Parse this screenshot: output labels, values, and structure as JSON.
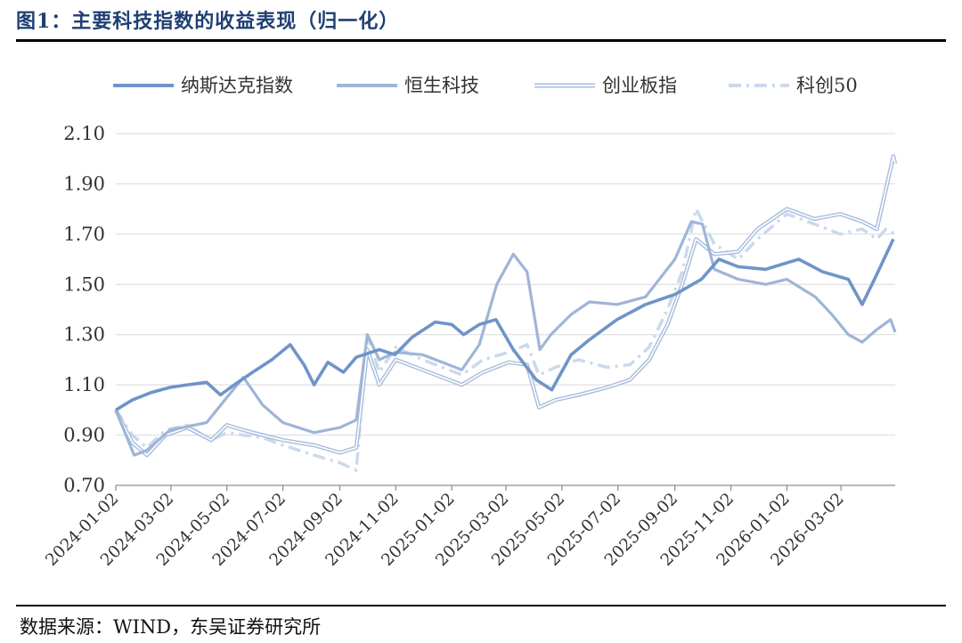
{
  "figure": {
    "title": "图1：主要科技指数的收益表现（归一化）",
    "source": "数据来源：WIND，东吴证券研究所"
  },
  "chart_data": {
    "type": "line",
    "title": "主要科技指数的收益表现（归一化）",
    "xlabel": "",
    "ylabel": "",
    "ylim": [
      0.7,
      2.1
    ],
    "yticks": [
      "0.70",
      "0.90",
      "1.10",
      "1.30",
      "1.50",
      "1.70",
      "1.90",
      "2.10"
    ],
    "xticks": [
      "2024-01-02",
      "2024-03-02",
      "2024-05-02",
      "2024-07-02",
      "2024-09-02",
      "2024-11-02",
      "2025-01-02",
      "2025-03-02",
      "2025-05-02",
      "2025-07-02",
      "2025-09-02",
      "2025-11-02",
      "2026-01-02",
      "2026-03-02"
    ],
    "grid": "horizontal",
    "legend_position": "top",
    "series": [
      {
        "name": "纳斯达克指数",
        "color": "#6f94c8",
        "style": "solid",
        "points": [
          [
            "2024-01-02",
            1.0
          ],
          [
            "2024-01-20",
            1.04
          ],
          [
            "2024-02-10",
            1.07
          ],
          [
            "2024-03-01",
            1.09
          ],
          [
            "2024-03-20",
            1.1
          ],
          [
            "2024-04-10",
            1.11
          ],
          [
            "2024-04-25",
            1.06
          ],
          [
            "2024-05-10",
            1.1
          ],
          [
            "2024-05-30",
            1.15
          ],
          [
            "2024-06-20",
            1.2
          ],
          [
            "2024-07-10",
            1.26
          ],
          [
            "2024-07-25",
            1.18
          ],
          [
            "2024-08-05",
            1.1
          ],
          [
            "2024-08-20",
            1.19
          ],
          [
            "2024-09-06",
            1.15
          ],
          [
            "2024-09-20",
            1.21
          ],
          [
            "2024-10-15",
            1.24
          ],
          [
            "2024-11-01",
            1.22
          ],
          [
            "2024-11-20",
            1.29
          ],
          [
            "2024-12-15",
            1.35
          ],
          [
            "2025-01-02",
            1.34
          ],
          [
            "2025-01-15",
            1.3
          ],
          [
            "2025-02-01",
            1.34
          ],
          [
            "2025-02-19",
            1.36
          ],
          [
            "2025-03-10",
            1.24
          ],
          [
            "2025-04-04",
            1.12
          ],
          [
            "2025-04-21",
            1.08
          ],
          [
            "2025-05-12",
            1.22
          ],
          [
            "2025-06-01",
            1.28
          ],
          [
            "2025-07-01",
            1.36
          ],
          [
            "2025-08-01",
            1.42
          ],
          [
            "2025-09-02",
            1.46
          ],
          [
            "2025-10-01",
            1.52
          ],
          [
            "2025-10-20",
            1.6
          ],
          [
            "2025-11-10",
            1.57
          ],
          [
            "2025-12-10",
            1.56
          ],
          [
            "2026-01-15",
            1.6
          ],
          [
            "2026-02-10",
            1.55
          ],
          [
            "2026-03-10",
            1.52
          ],
          [
            "2026-03-25",
            1.42
          ],
          [
            "2026-04-10",
            1.54
          ],
          [
            "2026-04-28",
            1.68
          ]
        ]
      },
      {
        "name": "恒生科技",
        "color": "#9fb5d8",
        "style": "solid",
        "points": [
          [
            "2024-01-02",
            1.0
          ],
          [
            "2024-01-22",
            0.82
          ],
          [
            "2024-02-05",
            0.84
          ],
          [
            "2024-03-01",
            0.92
          ],
          [
            "2024-04-10",
            0.95
          ],
          [
            "2024-05-02",
            1.05
          ],
          [
            "2024-05-20",
            1.13
          ],
          [
            "2024-06-10",
            1.02
          ],
          [
            "2024-07-02",
            0.95
          ],
          [
            "2024-08-05",
            0.91
          ],
          [
            "2024-09-02",
            0.93
          ],
          [
            "2024-09-20",
            0.96
          ],
          [
            "2024-10-02",
            1.3
          ],
          [
            "2024-10-15",
            1.2
          ],
          [
            "2024-11-02",
            1.23
          ],
          [
            "2024-12-01",
            1.22
          ],
          [
            "2025-01-13",
            1.16
          ],
          [
            "2025-02-01",
            1.26
          ],
          [
            "2025-02-20",
            1.5
          ],
          [
            "2025-03-10",
            1.62
          ],
          [
            "2025-03-25",
            1.55
          ],
          [
            "2025-04-08",
            1.24
          ],
          [
            "2025-04-20",
            1.3
          ],
          [
            "2025-05-12",
            1.38
          ],
          [
            "2025-06-01",
            1.43
          ],
          [
            "2025-07-01",
            1.42
          ],
          [
            "2025-08-01",
            1.45
          ],
          [
            "2025-09-02",
            1.6
          ],
          [
            "2025-09-20",
            1.75
          ],
          [
            "2025-10-02",
            1.74
          ],
          [
            "2025-10-15",
            1.56
          ],
          [
            "2025-11-10",
            1.52
          ],
          [
            "2025-12-10",
            1.5
          ],
          [
            "2026-01-02",
            1.52
          ],
          [
            "2026-02-02",
            1.45
          ],
          [
            "2026-02-20",
            1.38
          ],
          [
            "2026-03-10",
            1.3
          ],
          [
            "2026-03-25",
            1.27
          ],
          [
            "2026-04-10",
            1.32
          ],
          [
            "2026-04-25",
            1.36
          ],
          [
            "2026-04-30",
            1.31
          ]
        ]
      },
      {
        "name": "创业板指",
        "color": "#a9bede",
        "style": "double",
        "points": [
          [
            "2024-01-02",
            1.0
          ],
          [
            "2024-01-20",
            0.87
          ],
          [
            "2024-02-05",
            0.82
          ],
          [
            "2024-02-25",
            0.9
          ],
          [
            "2024-03-20",
            0.93
          ],
          [
            "2024-04-15",
            0.88
          ],
          [
            "2024-05-02",
            0.94
          ],
          [
            "2024-05-20",
            0.92
          ],
          [
            "2024-06-10",
            0.9
          ],
          [
            "2024-07-02",
            0.88
          ],
          [
            "2024-08-05",
            0.86
          ],
          [
            "2024-09-02",
            0.83
          ],
          [
            "2024-09-20",
            0.85
          ],
          [
            "2024-10-02",
            1.24
          ],
          [
            "2024-10-15",
            1.1
          ],
          [
            "2024-11-02",
            1.2
          ],
          [
            "2024-12-01",
            1.16
          ],
          [
            "2025-01-13",
            1.1
          ],
          [
            "2025-02-05",
            1.15
          ],
          [
            "2025-03-05",
            1.19
          ],
          [
            "2025-03-25",
            1.18
          ],
          [
            "2025-04-07",
            1.01
          ],
          [
            "2025-04-25",
            1.04
          ],
          [
            "2025-05-20",
            1.06
          ],
          [
            "2025-06-20",
            1.09
          ],
          [
            "2025-07-15",
            1.12
          ],
          [
            "2025-08-05",
            1.2
          ],
          [
            "2025-08-25",
            1.34
          ],
          [
            "2025-09-10",
            1.5
          ],
          [
            "2025-09-25",
            1.68
          ],
          [
            "2025-10-15",
            1.62
          ],
          [
            "2025-11-10",
            1.63
          ],
          [
            "2025-12-01",
            1.72
          ],
          [
            "2026-01-02",
            1.8
          ],
          [
            "2026-02-01",
            1.76
          ],
          [
            "2026-03-01",
            1.78
          ],
          [
            "2026-03-25",
            1.75
          ],
          [
            "2026-04-10",
            1.72
          ],
          [
            "2026-04-20",
            1.88
          ],
          [
            "2026-04-28",
            2.01
          ],
          [
            "2026-04-30",
            1.98
          ]
        ]
      },
      {
        "name": "科创50",
        "color": "#cbd9ed",
        "style": "dash-dot",
        "points": [
          [
            "2024-01-02",
            1.0
          ],
          [
            "2024-01-20",
            0.9
          ],
          [
            "2024-02-05",
            0.85
          ],
          [
            "2024-02-25",
            0.92
          ],
          [
            "2024-03-20",
            0.94
          ],
          [
            "2024-04-15",
            0.88
          ],
          [
            "2024-05-02",
            0.91
          ],
          [
            "2024-05-20",
            0.9
          ],
          [
            "2024-06-10",
            0.89
          ],
          [
            "2024-07-02",
            0.86
          ],
          [
            "2024-08-05",
            0.82
          ],
          [
            "2024-09-02",
            0.79
          ],
          [
            "2024-09-20",
            0.76
          ],
          [
            "2024-10-02",
            1.3
          ],
          [
            "2024-10-15",
            1.15
          ],
          [
            "2024-11-02",
            1.25
          ],
          [
            "2024-12-01",
            1.2
          ],
          [
            "2025-01-13",
            1.14
          ],
          [
            "2025-02-05",
            1.2
          ],
          [
            "2025-03-05",
            1.23
          ],
          [
            "2025-03-25",
            1.26
          ],
          [
            "2025-04-07",
            1.14
          ],
          [
            "2025-04-25",
            1.17
          ],
          [
            "2025-05-20",
            1.2
          ],
          [
            "2025-06-20",
            1.17
          ],
          [
            "2025-07-15",
            1.18
          ],
          [
            "2025-08-05",
            1.25
          ],
          [
            "2025-08-25",
            1.4
          ],
          [
            "2025-09-10",
            1.55
          ],
          [
            "2025-09-25",
            1.8
          ],
          [
            "2025-10-15",
            1.66
          ],
          [
            "2025-11-10",
            1.6
          ],
          [
            "2025-12-01",
            1.68
          ],
          [
            "2026-01-02",
            1.78
          ],
          [
            "2026-02-01",
            1.74
          ],
          [
            "2026-03-01",
            1.7
          ],
          [
            "2026-03-25",
            1.72
          ],
          [
            "2026-04-10",
            1.68
          ],
          [
            "2026-04-20",
            1.72
          ],
          [
            "2026-04-30",
            1.7
          ]
        ]
      }
    ]
  }
}
